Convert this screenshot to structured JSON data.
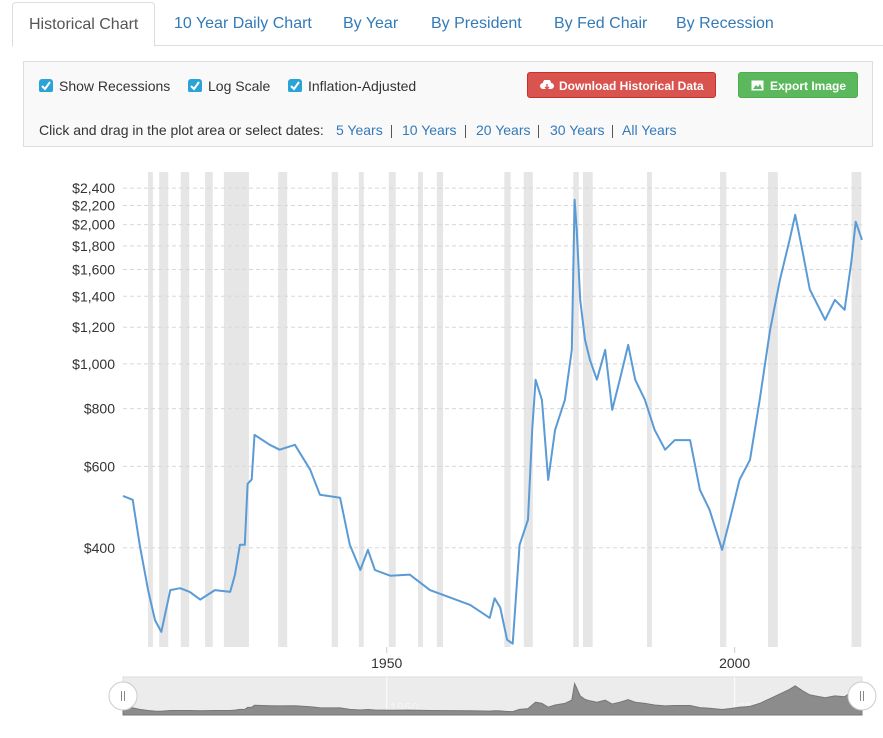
{
  "tabs": [
    "Historical Chart",
    "10 Year Daily Chart",
    "By Year",
    "By President",
    "By Fed Chair",
    "By Recession"
  ],
  "controls": {
    "checkboxes": [
      "Show Recessions",
      "Log Scale",
      "Inflation-Adjusted"
    ],
    "buttons": [
      "Download Historical Data",
      "Export Image"
    ],
    "range_prompt": "Click and drag in the plot area or select dates:",
    "ranges": [
      "5 Years",
      "10 Years",
      "20 Years",
      "30 Years",
      "All Years"
    ]
  },
  "chart_data": {
    "type": "line",
    "log_scale": true,
    "grid": true,
    "color": "#5b9bd5",
    "recession_color": "#e6e6e6",
    "x": [
      1912.1,
      1913.5,
      1914.5,
      1915.7,
      1916.7,
      1917.6,
      1918.9,
      1920.3,
      1921.7,
      1923.2,
      1925.3,
      1927.5,
      1928.2,
      1928.9,
      1929.6,
      1930.0,
      1930.6,
      1931.0,
      1933.2,
      1934.6,
      1936.8,
      1939.0,
      1940.4,
      1943.3,
      1944.7,
      1946.2,
      1947.3,
      1948.3,
      1950.5,
      1953.3,
      1956.2,
      1962.0,
      1964.8,
      1965.5,
      1966.3,
      1967.3,
      1968.1,
      1969.1,
      1970.3,
      1970.9,
      1971.4,
      1972.3,
      1973.2,
      1974.2,
      1975.6,
      1976.6,
      1977.0,
      1977.3,
      1977.8,
      1978.5,
      1979.2,
      1980.2,
      1981.4,
      1982.4,
      1983.5,
      1984.7,
      1985.7,
      1987.1,
      1988.5,
      1990.0,
      1991.4,
      1993.6,
      1995.0,
      1996.4,
      1998.2,
      1999.3,
      2000.7,
      2002.2,
      2003.6,
      2005.1,
      2006.5,
      2007.9,
      2008.7,
      2009.7,
      2010.8,
      2013.0,
      2014.4,
      2015.8,
      2016.8,
      2017.4,
      2018.3
    ],
    "values": [
      518,
      508,
      406,
      324,
      279,
      263,
      324,
      327,
      321,
      309,
      324,
      321,
      350,
      406,
      406,
      550,
      562,
      702,
      668,
      652,
      668,
      590,
      521,
      513,
      406,
      358,
      396,
      358,
      348,
      350,
      324,
      301,
      282,
      311,
      297,
      253,
      248,
      406,
      460,
      720,
      924,
      836,
      561,
      720,
      836,
      1072,
      2264,
      1951,
      1375,
      1127,
      1020,
      924,
      1072,
      795,
      924,
      1099,
      924,
      836,
      720,
      652,
      684,
      684,
      534,
      483,
      396,
      460,
      561,
      620,
      836,
      1184,
      1519,
      1854,
      2101,
      1766,
      1448,
      1245,
      1375,
      1309,
      1679,
      2030,
      1854
    ],
    "recessions": [
      [
        1915.7,
        1916.4
      ],
      [
        1917.3,
        1918.6
      ],
      [
        1920.4,
        1921.6
      ],
      [
        1923.9,
        1925.0
      ],
      [
        1926.6,
        1930.2
      ],
      [
        1934.4,
        1935.7
      ],
      [
        1942.1,
        1943.0
      ],
      [
        1946.0,
        1946.7
      ],
      [
        1950.3,
        1951.3
      ],
      [
        1954.5,
        1955.2
      ],
      [
        1957.2,
        1958.1
      ],
      [
        1966.9,
        1967.8
      ],
      [
        1969.7,
        1971.0
      ],
      [
        1976.8,
        1977.6
      ],
      [
        1978.2,
        1979.6
      ],
      [
        1987.4,
        1988.1
      ],
      [
        1997.9,
        1998.8
      ],
      [
        2004.8,
        2006.2
      ],
      [
        2016.8,
        2018.2
      ]
    ],
    "xlim": [
      1912.1,
      2018.3
    ],
    "xticks": [
      1950,
      2000
    ],
    "ylim": [
      244,
      2600
    ],
    "yticks": [
      {
        "value": 400,
        "label": "$400"
      },
      {
        "value": 600,
        "label": "$600"
      },
      {
        "value": 800,
        "label": "$800"
      },
      {
        "value": 1000,
        "label": "$1,000"
      },
      {
        "value": 1200,
        "label": "$1,200"
      },
      {
        "value": 1400,
        "label": "$1,400"
      },
      {
        "value": 1600,
        "label": "$1,600"
      },
      {
        "value": 1800,
        "label": "$1,800"
      },
      {
        "value": 2000,
        "label": "$2,000"
      },
      {
        "value": 2200,
        "label": "$2,200"
      },
      {
        "value": 2400,
        "label": "$2,400"
      }
    ]
  }
}
